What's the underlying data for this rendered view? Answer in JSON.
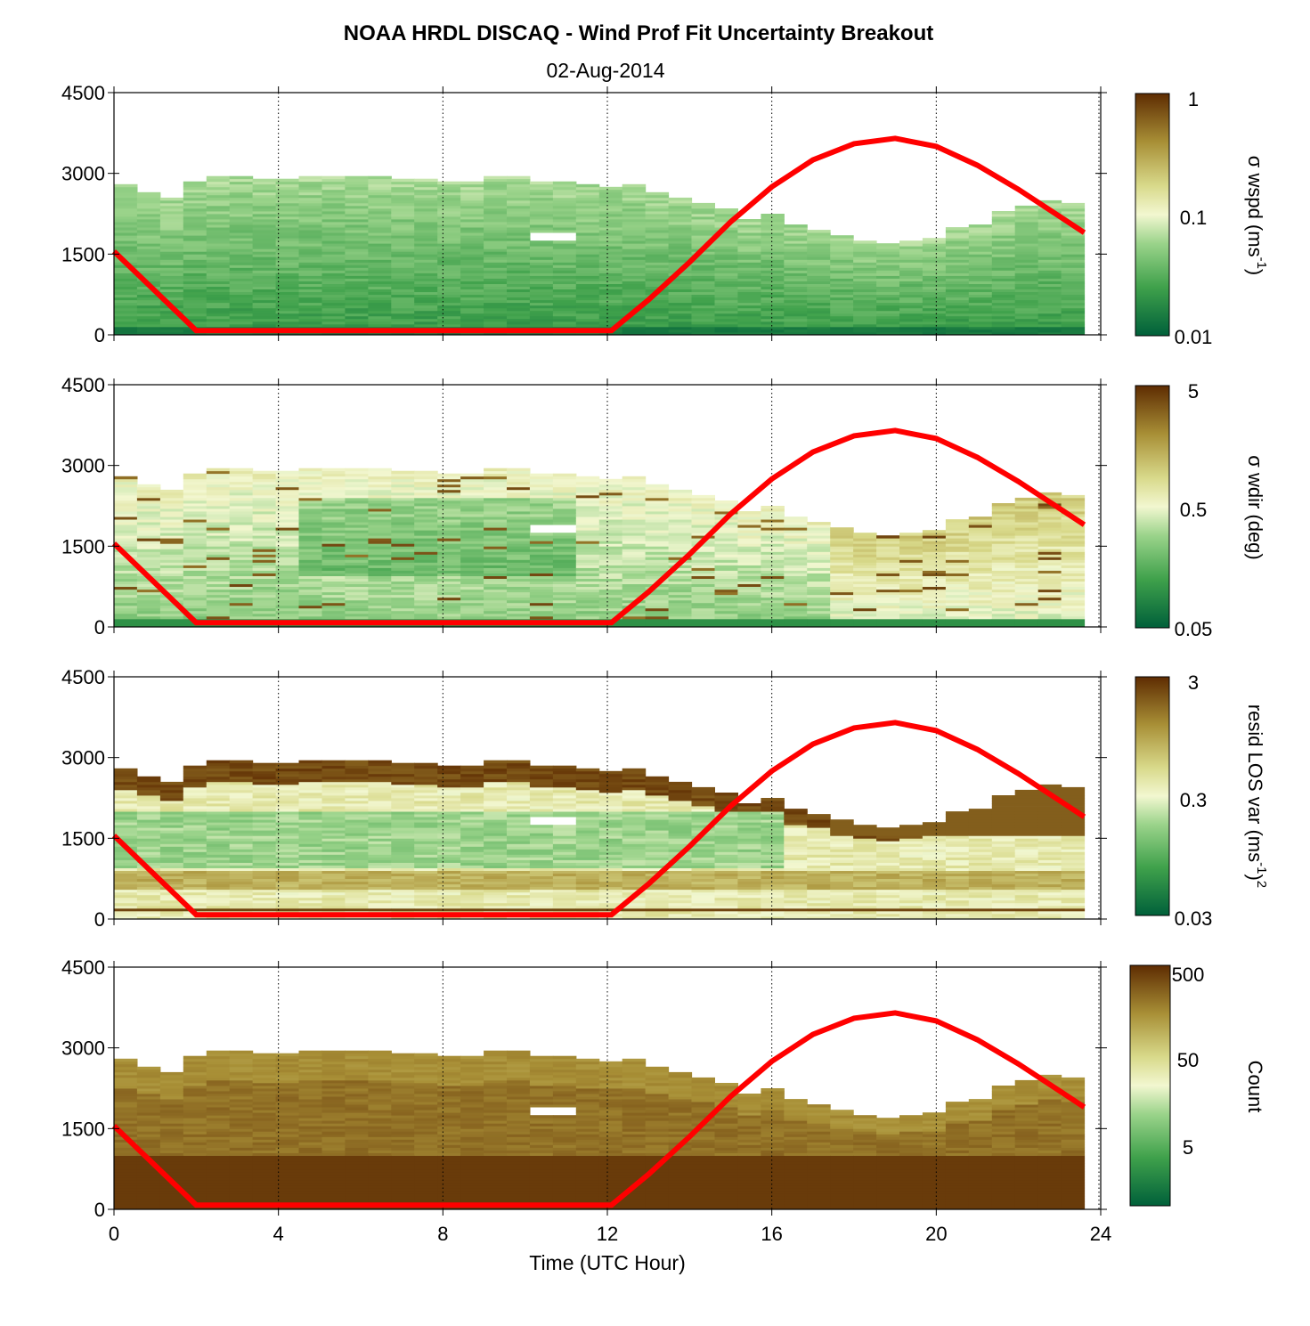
{
  "title": "NOAA HRDL DISCAQ - Wind Prof Fit Uncertainty Breakout",
  "date": "02-Aug-2014",
  "colors": {
    "sun_line": "#ff0000",
    "low_green": "#00603a",
    "mid_light": "#f2f7d0",
    "high_brown": "#5e2c02",
    "background": "#ffffff"
  },
  "chart_data": [
    {
      "type": "heatmap",
      "panel": "wspd",
      "ylabel": "σ wspd (ms⁻¹)",
      "xlabel": "",
      "xlim": [
        0,
        24
      ],
      "ylim": [
        0,
        4500
      ],
      "y_ticks": [
        "0",
        "1500",
        "3000",
        "4500"
      ],
      "x_ticks": [
        "0",
        "4",
        "8",
        "12",
        "16",
        "20",
        "24"
      ],
      "colorbar": {
        "scale": "log",
        "range": [
          0.01,
          1
        ],
        "ticks": [
          "1",
          "0.1",
          "0.01"
        ]
      },
      "top_height_m": [
        2800,
        2650,
        2550,
        2850,
        2950,
        2950,
        2900,
        2900,
        2950,
        2950,
        2950,
        2950,
        2900,
        2900,
        2850,
        2850,
        2950,
        2950,
        2850,
        2850,
        2800,
        2750,
        2800,
        2650,
        2550,
        2450,
        2350,
        2150,
        2250,
        2050,
        1950,
        1850,
        1750,
        1700,
        1750,
        1800,
        2000,
        2050,
        2300,
        2400,
        2500,
        2450
      ],
      "typical_value": 0.03
    },
    {
      "type": "heatmap",
      "panel": "wdir",
      "ylabel": "σ wdir (deg)",
      "xlabel": "",
      "xlim": [
        0,
        24
      ],
      "ylim": [
        0,
        4500
      ],
      "y_ticks": [
        "0",
        "1500",
        "3000",
        "4500"
      ],
      "x_ticks": [
        "0",
        "4",
        "8",
        "12",
        "16",
        "20",
        "24"
      ],
      "colorbar": {
        "scale": "log",
        "range": [
          0.05,
          5
        ],
        "ticks": [
          "5",
          "0.5",
          "0.05"
        ]
      },
      "typical_value": 0.5
    },
    {
      "type": "heatmap",
      "panel": "resid",
      "ylabel": "resid LOS var (ms⁻¹)²",
      "xlabel": "",
      "xlim": [
        0,
        24
      ],
      "ylim": [
        0,
        4500
      ],
      "y_ticks": [
        "0",
        "1500",
        "3000",
        "4500"
      ],
      "x_ticks": [
        "0",
        "4",
        "8",
        "12",
        "16",
        "20",
        "24"
      ],
      "colorbar": {
        "scale": "log",
        "range": [
          0.03,
          3
        ],
        "ticks": [
          "3",
          "0.3",
          "0.03"
        ]
      },
      "typical_value": 0.6
    },
    {
      "type": "heatmap",
      "panel": "count",
      "ylabel": "Count",
      "xlabel": "Time (UTC Hour)",
      "xlim": [
        0,
        24
      ],
      "ylim": [
        0,
        4500
      ],
      "y_ticks": [
        "0",
        "1500",
        "3000",
        "4500"
      ],
      "x_ticks": [
        "0",
        "4",
        "8",
        "12",
        "16",
        "20",
        "24"
      ],
      "colorbar": {
        "scale": "log",
        "range": [
          1,
          600
        ],
        "ticks": [
          "500",
          "50",
          "5"
        ]
      },
      "typical_value": 300
    }
  ],
  "sun_curve": {
    "description": "solar elevation overlay",
    "points_hour_height": [
      [
        0,
        1550
      ],
      [
        2,
        80
      ],
      [
        12.1,
        80
      ],
      [
        13,
        650
      ],
      [
        14,
        1350
      ],
      [
        15,
        2100
      ],
      [
        16,
        2750
      ],
      [
        17,
        3250
      ],
      [
        18,
        3550
      ],
      [
        19,
        3650
      ],
      [
        20,
        3500
      ],
      [
        21,
        3150
      ],
      [
        22,
        2700
      ],
      [
        23,
        2200
      ],
      [
        23.6,
        1900
      ]
    ]
  }
}
